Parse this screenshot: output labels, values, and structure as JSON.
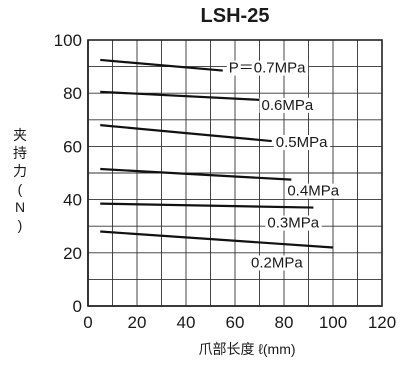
{
  "chart_data": {
    "type": "line",
    "title": "LSH-25",
    "xlabel": "爪部长度 ℓ(mm)",
    "ylabel": "夹持力(N)",
    "xlim": [
      0,
      120
    ],
    "ylim": [
      0,
      100
    ],
    "x_ticks": [
      "0",
      "20",
      "40",
      "60",
      "80",
      "100",
      "120"
    ],
    "y_ticks": [
      "0",
      "20",
      "40",
      "60",
      "80",
      "100"
    ],
    "grid": true,
    "series": [
      {
        "name": "P＝0.7MPa",
        "x": [
          5,
          55
        ],
        "y": [
          92.5,
          88.5
        ]
      },
      {
        "name": "0.6MPa",
        "x": [
          5,
          70
        ],
        "y": [
          80.5,
          77.5
        ]
      },
      {
        "name": "0.5MPa",
        "x": [
          5,
          75
        ],
        "y": [
          68,
          62
        ]
      },
      {
        "name": "0.4MPa",
        "x": [
          5,
          83
        ],
        "y": [
          51.5,
          47.5
        ]
      },
      {
        "name": "0.3MPa",
        "x": [
          5,
          92
        ],
        "y": [
          38.5,
          37
        ]
      },
      {
        "name": "0.2MPa",
        "x": [
          5,
          100
        ],
        "y": [
          28,
          22
        ]
      }
    ]
  }
}
